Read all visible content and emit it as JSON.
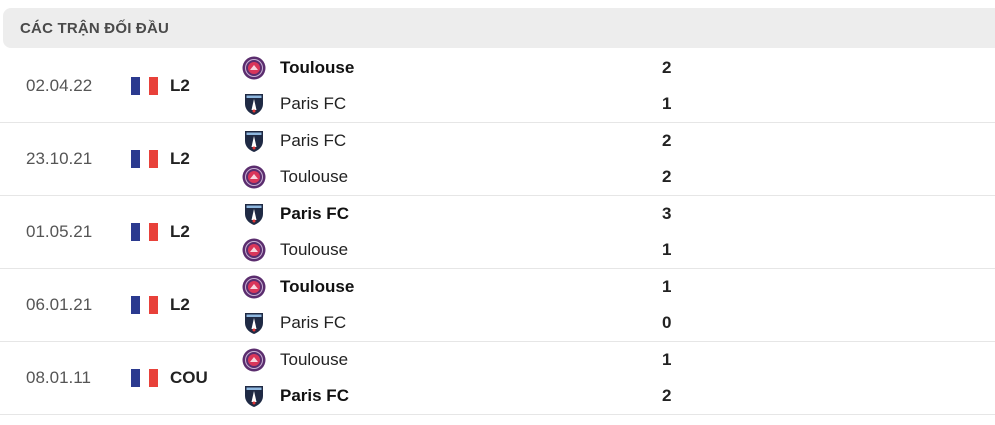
{
  "header": {
    "title": "CÁC TRẬN ĐỐI ĐẦU"
  },
  "colors": {
    "toulouse": "#5b2d6e",
    "paris_fc": "#1f2a44",
    "flag": [
      "#2b3a8f",
      "#ffffff",
      "#e8413a"
    ]
  },
  "matches": [
    {
      "date": "02.04.22",
      "competition": "L2",
      "home": {
        "name": "Toulouse",
        "logo": "toulouse-crest",
        "score": "2",
        "winner": true
      },
      "away": {
        "name": "Paris FC",
        "logo": "paris-fc-crest",
        "score": "1",
        "winner": false
      }
    },
    {
      "date": "23.10.21",
      "competition": "L2",
      "home": {
        "name": "Paris FC",
        "logo": "paris-fc-crest",
        "score": "2",
        "winner": false
      },
      "away": {
        "name": "Toulouse",
        "logo": "toulouse-crest",
        "score": "2",
        "winner": false
      }
    },
    {
      "date": "01.05.21",
      "competition": "L2",
      "home": {
        "name": "Paris FC",
        "logo": "paris-fc-crest",
        "score": "3",
        "winner": true
      },
      "away": {
        "name": "Toulouse",
        "logo": "toulouse-crest",
        "score": "1",
        "winner": false
      }
    },
    {
      "date": "06.01.21",
      "competition": "L2",
      "home": {
        "name": "Toulouse",
        "logo": "toulouse-crest",
        "score": "1",
        "winner": true
      },
      "away": {
        "name": "Paris FC",
        "logo": "paris-fc-crest",
        "score": "0",
        "winner": false
      }
    },
    {
      "date": "08.01.11",
      "competition": "COU",
      "home": {
        "name": "Toulouse",
        "logo": "toulouse-crest",
        "score": "1",
        "winner": false
      },
      "away": {
        "name": "Paris FC",
        "logo": "paris-fc-crest",
        "score": "2",
        "winner": true
      }
    }
  ]
}
